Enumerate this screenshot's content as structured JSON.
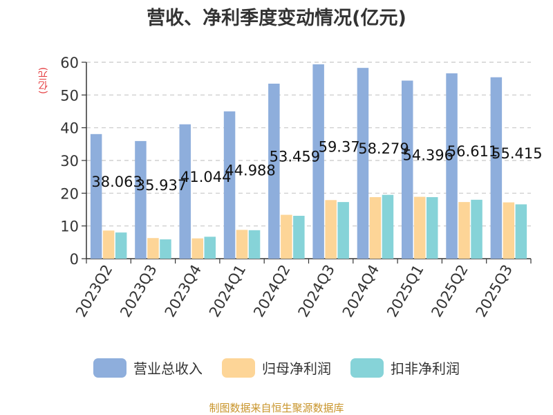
{
  "chart_data": {
    "type": "bar",
    "title": "营收、净利季度变动情况(亿元)",
    "ylabel": "(亿元)",
    "xlabel": "",
    "categories": [
      "2023Q2",
      "2023Q3",
      "2023Q4",
      "2024Q1",
      "2024Q2",
      "2024Q3",
      "2024Q4",
      "2025Q1",
      "2025Q2",
      "2025Q3"
    ],
    "ylim": [
      0,
      60
    ],
    "yticks": [
      0,
      10,
      20,
      30,
      40,
      50,
      60
    ],
    "grid": true,
    "legend_position": "bottom",
    "series": [
      {
        "name": "营业总收入",
        "color": "#8eaedc",
        "values": [
          38.063,
          35.937,
          41.044,
          44.988,
          53.459,
          59.37,
          58.279,
          54.396,
          56.611,
          55.415
        ],
        "labels": [
          "38.063",
          "35.937",
          "41.044",
          "44.988",
          "53.459",
          "59.37",
          "58.279",
          "54.396",
          "56.611",
          "55.415"
        ]
      },
      {
        "name": "归母净利润",
        "color": "#fdd597",
        "values": [
          8.6,
          6.3,
          6.2,
          8.8,
          13.4,
          17.9,
          18.8,
          18.9,
          17.3,
          17.2
        ]
      },
      {
        "name": "扣非净利润",
        "color": "#86d3d8",
        "values": [
          8.0,
          5.9,
          6.7,
          8.7,
          13.1,
          17.3,
          19.5,
          18.8,
          18.0,
          16.6
        ]
      }
    ]
  },
  "source_text": "制图数据来自恒生聚源数据库"
}
